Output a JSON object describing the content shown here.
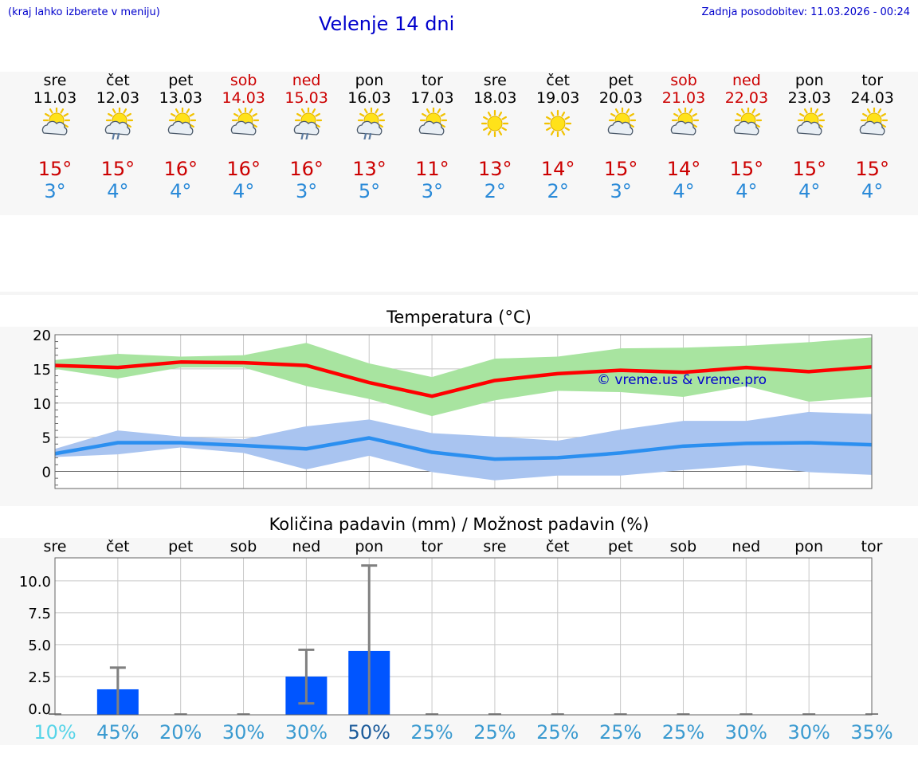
{
  "header": {
    "note": "(kraj lahko izberete v meniju)",
    "title": "Velenje 14 dni",
    "updated": "Zadnja posodobitev: 11.03.2026 - 00:24"
  },
  "days": [
    {
      "name": "sre",
      "date": "11.03",
      "weekend": false,
      "icon": "sun-cloud-icon",
      "tmax": "15°",
      "tmin": "3°"
    },
    {
      "name": "čet",
      "date": "12.03",
      "weekend": false,
      "icon": "sun-cloud-rain-icon",
      "tmax": "15°",
      "tmin": "4°"
    },
    {
      "name": "pet",
      "date": "13.03",
      "weekend": false,
      "icon": "sun-cloud-icon",
      "tmax": "16°",
      "tmin": "4°"
    },
    {
      "name": "sob",
      "date": "14.03",
      "weekend": true,
      "icon": "sun-cloud-icon",
      "tmax": "16°",
      "tmin": "4°"
    },
    {
      "name": "ned",
      "date": "15.03",
      "weekend": true,
      "icon": "sun-cloud-rain-icon",
      "tmax": "16°",
      "tmin": "3°"
    },
    {
      "name": "pon",
      "date": "16.03",
      "weekend": false,
      "icon": "sun-cloud-rain-icon",
      "tmax": "13°",
      "tmin": "5°"
    },
    {
      "name": "tor",
      "date": "17.03",
      "weekend": false,
      "icon": "sun-cloud-icon",
      "tmax": "11°",
      "tmin": "3°"
    },
    {
      "name": "sre",
      "date": "18.03",
      "weekend": false,
      "icon": "sun-icon",
      "tmax": "13°",
      "tmin": "2°"
    },
    {
      "name": "čet",
      "date": "19.03",
      "weekend": false,
      "icon": "sun-icon",
      "tmax": "14°",
      "tmin": "2°"
    },
    {
      "name": "pet",
      "date": "20.03",
      "weekend": false,
      "icon": "sun-cloud-icon",
      "tmax": "15°",
      "tmin": "3°"
    },
    {
      "name": "sob",
      "date": "21.03",
      "weekend": true,
      "icon": "sun-cloud-icon",
      "tmax": "14°",
      "tmin": "4°"
    },
    {
      "name": "ned",
      "date": "22.03",
      "weekend": true,
      "icon": "sun-cloud-icon",
      "tmax": "15°",
      "tmin": "4°"
    },
    {
      "name": "pon",
      "date": "23.03",
      "weekend": false,
      "icon": "sun-cloud-icon",
      "tmax": "15°",
      "tmin": "4°"
    },
    {
      "name": "tor",
      "date": "24.03",
      "weekend": false,
      "icon": "sun-cloud-icon",
      "tmax": "15°",
      "tmin": "4°"
    }
  ],
  "colors": {
    "max_line": "#ff0000",
    "max_band": "#a8e4a0",
    "min_line": "#2b8ff0",
    "min_band": "#a9c4f0",
    "bar": "#0055ff",
    "error": "#808080"
  },
  "chart_data": [
    {
      "type": "line",
      "title": "Temperatura (°C)",
      "ylim": [
        -2.5,
        20
      ],
      "yticks": [
        "0",
        "5",
        "10",
        "15",
        "20"
      ],
      "x": [
        1,
        2,
        3,
        4,
        5,
        6,
        7,
        8,
        9,
        10,
        11,
        12,
        13,
        14
      ],
      "series": [
        {
          "name": "max",
          "values": [
            15.5,
            15.2,
            16.0,
            15.9,
            15.5,
            13.0,
            11.0,
            13.3,
            14.3,
            14.8,
            14.5,
            15.2,
            14.6,
            15.3
          ]
        },
        {
          "name": "max_band_high",
          "values": [
            16.3,
            17.2,
            16.8,
            17.0,
            18.8,
            15.8,
            13.8,
            16.5,
            16.8,
            18.0,
            18.1,
            18.4,
            18.9,
            19.6
          ]
        },
        {
          "name": "max_band_low",
          "values": [
            15.0,
            13.6,
            15.2,
            15.2,
            12.5,
            10.6,
            8.1,
            10.4,
            11.8,
            11.6,
            10.9,
            12.5,
            10.2,
            10.9
          ]
        },
        {
          "name": "min",
          "values": [
            2.6,
            4.2,
            4.2,
            3.8,
            3.3,
            4.9,
            2.8,
            1.8,
            2.0,
            2.7,
            3.7,
            4.1,
            4.2,
            3.9
          ]
        },
        {
          "name": "min_band_high",
          "values": [
            3.3,
            6.0,
            5.1,
            4.7,
            6.6,
            7.6,
            5.6,
            5.1,
            4.5,
            6.1,
            7.4,
            7.4,
            8.7,
            8.4
          ]
        },
        {
          "name": "min_band_low",
          "values": [
            2.1,
            2.5,
            3.5,
            2.7,
            0.3,
            2.3,
            -0.1,
            -1.3,
            -0.6,
            -0.6,
            0.2,
            0.9,
            -0.1,
            -0.5
          ]
        }
      ]
    },
    {
      "type": "bar",
      "title": "Količina padavin (mm) / Možnost padavin (%)",
      "ylim": [
        -0.5,
        11.8
      ],
      "yticks": [
        "0.0",
        "2.5",
        "5.0",
        "7.5",
        "10.0"
      ],
      "categories": [
        "sre",
        "čet",
        "pet",
        "sob",
        "ned",
        "pon",
        "tor",
        "sre",
        "čet",
        "pet",
        "sob",
        "ned",
        "pon",
        "tor"
      ],
      "values": [
        0.0,
        1.5,
        0.0,
        0.0,
        2.5,
        4.5,
        0.0,
        0.0,
        0.0,
        0.0,
        0.0,
        0.0,
        0.0,
        0.0
      ],
      "err_low": [
        0,
        0,
        0,
        0,
        0.4,
        0,
        0,
        0,
        0,
        0,
        0,
        0,
        0,
        0
      ],
      "err_high": [
        0,
        3.2,
        0,
        0,
        4.6,
        11.2,
        0,
        0,
        0,
        0,
        0,
        0,
        0,
        0
      ],
      "probability": [
        "10%",
        "45%",
        "20%",
        "30%",
        "30%",
        "50%",
        "25%",
        "25%",
        "25%",
        "25%",
        "25%",
        "30%",
        "30%",
        "35%"
      ],
      "probability_colors": [
        "#55d4e8",
        "#3a9ad0",
        "#3a9ad0",
        "#3a9ad0",
        "#3a9ad0",
        "#1a5a9a",
        "#3a9ad0",
        "#3a9ad0",
        "#3a9ad0",
        "#3a9ad0",
        "#3a9ad0",
        "#3a9ad0",
        "#3a9ad0",
        "#3a9ad0"
      ]
    }
  ],
  "watermark": "© vreme.us & vreme.pro"
}
